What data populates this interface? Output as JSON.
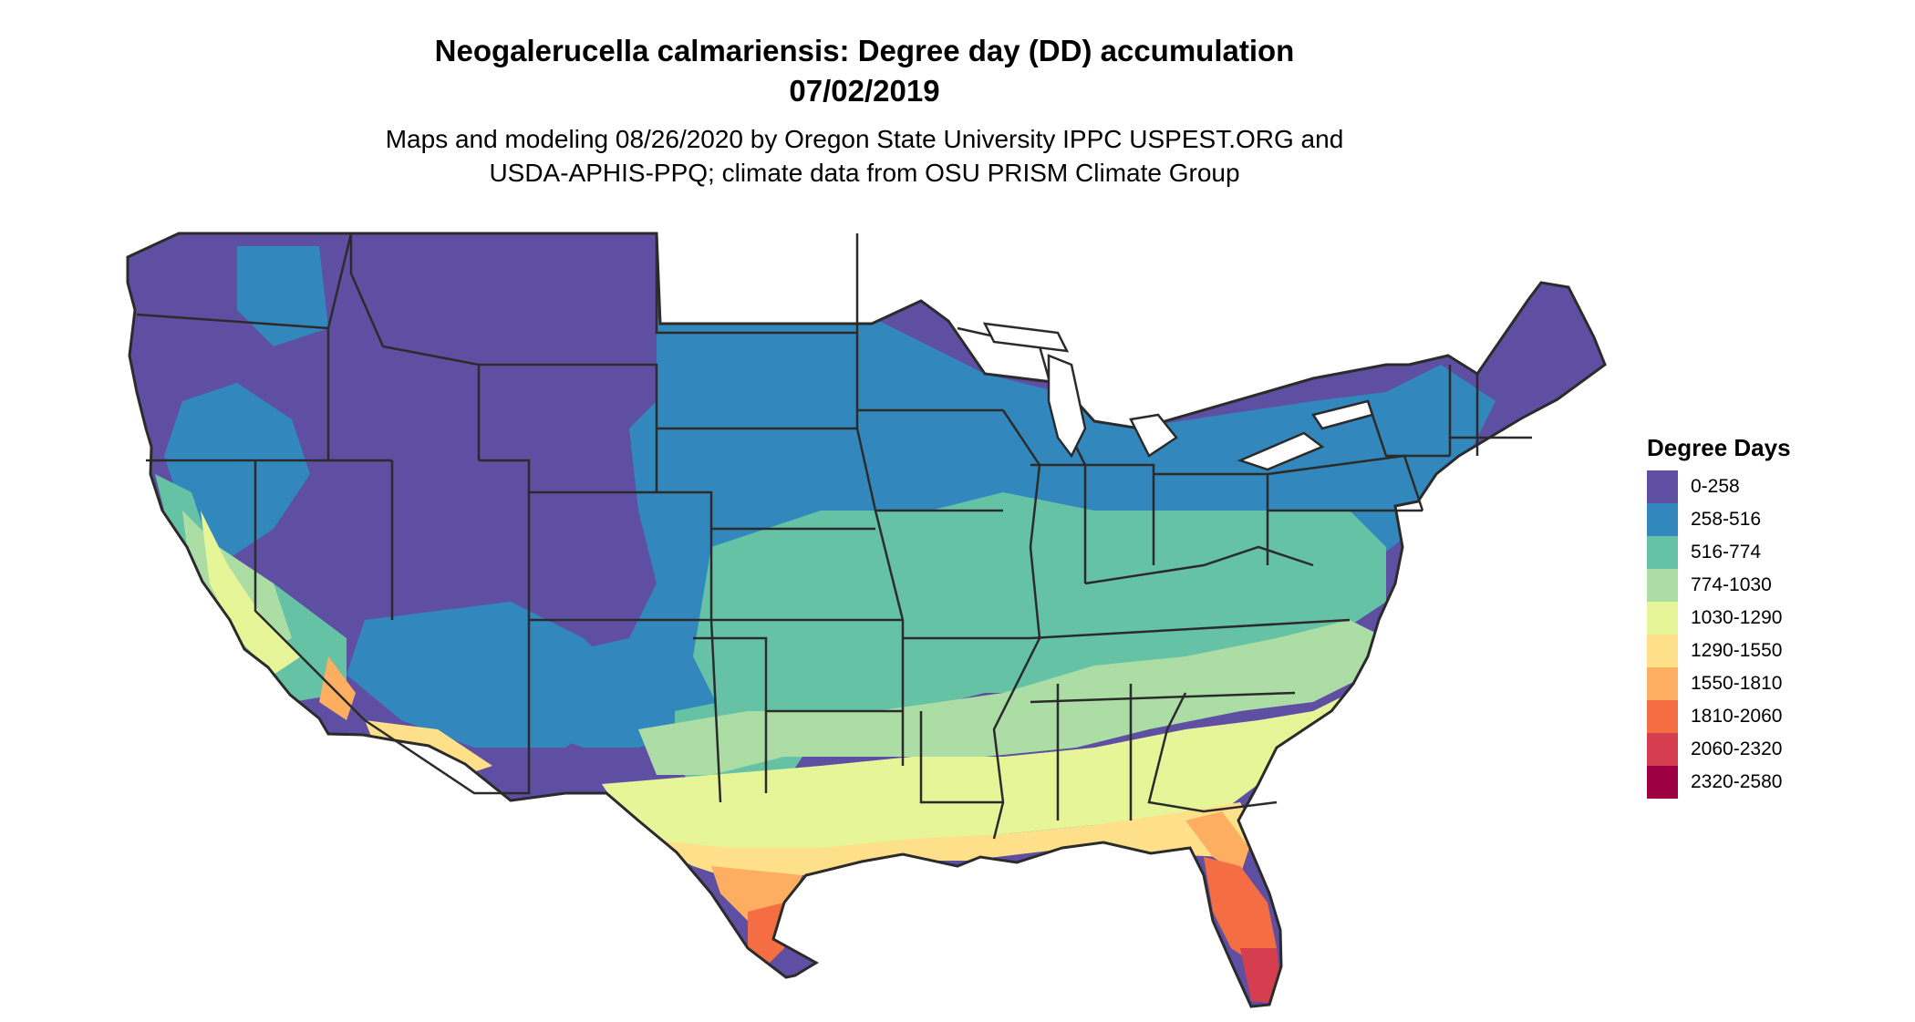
{
  "title": {
    "line1": "Neogalerucella calmariensis: Degree day (DD) accumulation",
    "line2": "07/02/2019"
  },
  "subtitle": {
    "line1": "Maps and modeling 08/26/2020 by Oregon State University IPPC USPEST.ORG and",
    "line2": "USDA-APHIS-PPQ; climate data from OSU PRISM Climate Group"
  },
  "legend": {
    "title": "Degree Days",
    "classes": [
      {
        "label": "0-258",
        "color": "#5E4FA2"
      },
      {
        "label": "258-516",
        "color": "#3288BD"
      },
      {
        "label": "516-774",
        "color": "#66C2A5"
      },
      {
        "label": "774-1030",
        "color": "#ABDDA4"
      },
      {
        "label": "1030-1290",
        "color": "#E6F598"
      },
      {
        "label": "1290-1550",
        "color": "#FEE08B"
      },
      {
        "label": "1550-1810",
        "color": "#FDAE61"
      },
      {
        "label": "1810-2060",
        "color": "#F46D43"
      },
      {
        "label": "2060-2320",
        "color": "#D53E4F"
      },
      {
        "label": "2320-2580",
        "color": "#9E0142"
      }
    ]
  },
  "map": {
    "region": "Contiguous United States",
    "border_color": "#2b2b2b"
  }
}
